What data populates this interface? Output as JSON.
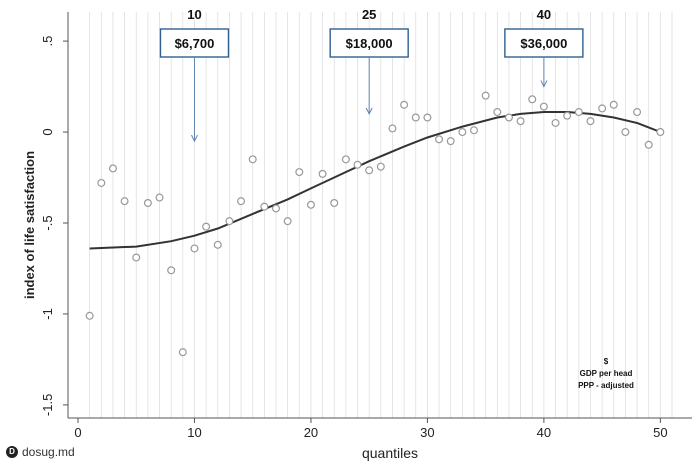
{
  "chart_data": {
    "type": "scatter",
    "xlabel": "quantiles",
    "ylabel": "index of life satisfaction",
    "xlim": [
      0,
      51
    ],
    "ylim": [
      -1.55,
      0.55
    ],
    "x_ticks": [
      0,
      10,
      20,
      30,
      40,
      50
    ],
    "y_ticks": [
      {
        "value": 0.5,
        "label": ".5"
      },
      {
        "value": 0,
        "label": "0"
      },
      {
        "value": -0.5,
        "label": "-.5"
      },
      {
        "value": -1,
        "label": "-1"
      },
      {
        "value": -1.5,
        "label": "-1.5"
      }
    ],
    "grid": "vertical gridlines at each quantile",
    "points": [
      {
        "x": 1,
        "y": -1.01
      },
      {
        "x": 2,
        "y": -0.28
      },
      {
        "x": 3,
        "y": -0.2
      },
      {
        "x": 4,
        "y": -0.38
      },
      {
        "x": 5,
        "y": -0.69
      },
      {
        "x": 6,
        "y": -0.39
      },
      {
        "x": 7,
        "y": -0.36
      },
      {
        "x": 8,
        "y": -0.76
      },
      {
        "x": 9,
        "y": -1.21
      },
      {
        "x": 10,
        "y": -0.64
      },
      {
        "x": 11,
        "y": -0.52
      },
      {
        "x": 12,
        "y": -0.62
      },
      {
        "x": 13,
        "y": -0.49
      },
      {
        "x": 14,
        "y": -0.38
      },
      {
        "x": 15,
        "y": -0.15
      },
      {
        "x": 16,
        "y": -0.41
      },
      {
        "x": 17,
        "y": -0.42
      },
      {
        "x": 18,
        "y": -0.49
      },
      {
        "x": 19,
        "y": -0.22
      },
      {
        "x": 20,
        "y": -0.4
      },
      {
        "x": 21,
        "y": -0.23
      },
      {
        "x": 22,
        "y": -0.39
      },
      {
        "x": 23,
        "y": -0.15
      },
      {
        "x": 24,
        "y": -0.18
      },
      {
        "x": 25,
        "y": -0.21
      },
      {
        "x": 26,
        "y": -0.19
      },
      {
        "x": 27,
        "y": 0.02
      },
      {
        "x": 28,
        "y": 0.15
      },
      {
        "x": 29,
        "y": 0.08
      },
      {
        "x": 30,
        "y": 0.08
      },
      {
        "x": 31,
        "y": -0.04
      },
      {
        "x": 32,
        "y": -0.05
      },
      {
        "x": 33,
        "y": 0.0
      },
      {
        "x": 34,
        "y": 0.01
      },
      {
        "x": 35,
        "y": 0.2
      },
      {
        "x": 36,
        "y": 0.11
      },
      {
        "x": 37,
        "y": 0.08
      },
      {
        "x": 38,
        "y": 0.06
      },
      {
        "x": 39,
        "y": 0.18
      },
      {
        "x": 40,
        "y": 0.14
      },
      {
        "x": 41,
        "y": 0.05
      },
      {
        "x": 42,
        "y": 0.09
      },
      {
        "x": 43,
        "y": 0.11
      },
      {
        "x": 44,
        "y": 0.06
      },
      {
        "x": 45,
        "y": 0.13
      },
      {
        "x": 46,
        "y": 0.15
      },
      {
        "x": 47,
        "y": 0.0
      },
      {
        "x": 48,
        "y": 0.11
      },
      {
        "x": 49,
        "y": -0.07
      },
      {
        "x": 50,
        "y": 0.0
      }
    ],
    "fit_curve": [
      {
        "x": 1,
        "y": -0.64
      },
      {
        "x": 5,
        "y": -0.63
      },
      {
        "x": 8,
        "y": -0.6
      },
      {
        "x": 10,
        "y": -0.57
      },
      {
        "x": 12,
        "y": -0.53
      },
      {
        "x": 15,
        "y": -0.45
      },
      {
        "x": 18,
        "y": -0.37
      },
      {
        "x": 20,
        "y": -0.31
      },
      {
        "x": 22,
        "y": -0.25
      },
      {
        "x": 25,
        "y": -0.16
      },
      {
        "x": 28,
        "y": -0.08
      },
      {
        "x": 30,
        "y": -0.03
      },
      {
        "x": 33,
        "y": 0.03
      },
      {
        "x": 36,
        "y": 0.08
      },
      {
        "x": 38,
        "y": 0.1
      },
      {
        "x": 40,
        "y": 0.11
      },
      {
        "x": 42,
        "y": 0.11
      },
      {
        "x": 44,
        "y": 0.1
      },
      {
        "x": 46,
        "y": 0.08
      },
      {
        "x": 48,
        "y": 0.05
      },
      {
        "x": 50,
        "y": 0.0
      }
    ],
    "annotations": [
      {
        "quantile": 10,
        "quantile_label": "10",
        "label": "$6,700",
        "arrow_y": -0.05
      },
      {
        "quantile": 25,
        "quantile_label": "25",
        "label": "$18,000",
        "arrow_y": 0.1
      },
      {
        "quantile": 40,
        "quantile_label": "40",
        "label": "$36,000",
        "arrow_y": 0.25
      }
    ],
    "note": [
      "$",
      "GDP per head",
      "PPP - adjusted"
    ],
    "colors": {
      "points": "#999999",
      "curve": "#333333",
      "grid": "#dddddd",
      "callout_border": "#2f5f8f",
      "arrow": "#5f86b0"
    }
  },
  "watermark": {
    "icon": "d-logo-icon",
    "text": "dosug.md"
  }
}
